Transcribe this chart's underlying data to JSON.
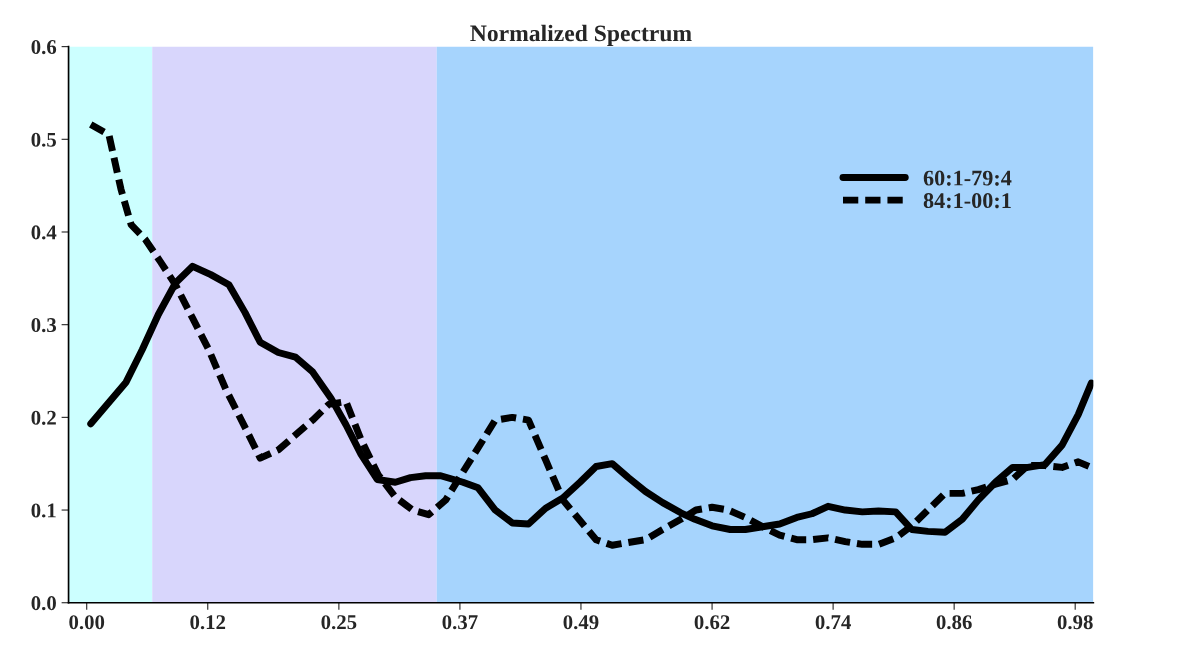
{
  "chart_data": {
    "type": "line",
    "title": "Normalized Spectrum",
    "xlim": [
      -0.018,
      0.998
    ],
    "ylim": [
      0,
      0.6
    ],
    "xticks": [
      {
        "value": 0,
        "label": "0.00"
      },
      {
        "value": 0.12,
        "label": "0.12"
      },
      {
        "value": 0.25,
        "label": "0.25"
      },
      {
        "value": 0.37,
        "label": "0.37"
      },
      {
        "value": 0.49,
        "label": "0.49"
      },
      {
        "value": 0.62,
        "label": "0.62"
      },
      {
        "value": 0.74,
        "label": "0.74"
      },
      {
        "value": 0.86,
        "label": "0.86"
      },
      {
        "value": 0.98,
        "label": "0.98"
      }
    ],
    "yticks": [
      {
        "value": 0,
        "label": "0.0"
      },
      0.1,
      0.2,
      0.3,
      0.4,
      0.5,
      0.6
    ],
    "grid": false,
    "legend": "right",
    "bands": [
      {
        "axis": "x",
        "from": -0.018,
        "to": 0.065,
        "color": "#ccffff"
      },
      {
        "axis": "x",
        "from": 0.065,
        "to": 0.347,
        "color": "#d8d6fc"
      },
      {
        "axis": "x",
        "from": 0.347,
        "to": 0.998,
        "color": "#a6d4fd"
      }
    ],
    "series": [
      {
        "name": "60:1-79:4",
        "color": "#000000",
        "line_style": "solid",
        "x": [
          0.004,
          0.039,
          0.055,
          0.071,
          0.088,
          0.105,
          0.123,
          0.141,
          0.157,
          0.172,
          0.19,
          0.207,
          0.224,
          0.242,
          0.257,
          0.272,
          0.288,
          0.306,
          0.321,
          0.336,
          0.351,
          0.373,
          0.388,
          0.405,
          0.422,
          0.438,
          0.455,
          0.472,
          0.489,
          0.505,
          0.521,
          0.537,
          0.554,
          0.571,
          0.589,
          0.603,
          0.62,
          0.638,
          0.653,
          0.67,
          0.687,
          0.704,
          0.719,
          0.735,
          0.752,
          0.769,
          0.785,
          0.802,
          0.818,
          0.834,
          0.851,
          0.868,
          0.884,
          0.901,
          0.918,
          0.933,
          0.95,
          0.967,
          0.983,
          0.996
        ],
        "values": [
          0.193,
          0.238,
          0.273,
          0.311,
          0.345,
          0.363,
          0.354,
          0.343,
          0.313,
          0.281,
          0.27,
          0.265,
          0.249,
          0.221,
          0.192,
          0.16,
          0.133,
          0.13,
          0.135,
          0.137,
          0.137,
          0.13,
          0.124,
          0.1,
          0.086,
          0.085,
          0.102,
          0.113,
          0.13,
          0.147,
          0.15,
          0.135,
          0.12,
          0.108,
          0.097,
          0.09,
          0.083,
          0.079,
          0.079,
          0.082,
          0.085,
          0.092,
          0.096,
          0.104,
          0.1,
          0.098,
          0.099,
          0.098,
          0.079,
          0.077,
          0.076,
          0.09,
          0.111,
          0.13,
          0.146,
          0.146,
          0.149,
          0.17,
          0.203,
          0.237
        ]
      },
      {
        "name": "84:1-00:1",
        "color": "#000000",
        "line_style": "dashed",
        "x": [
          0.004,
          0.022,
          0.034,
          0.044,
          0.058,
          0.073,
          0.088,
          0.105,
          0.121,
          0.138,
          0.158,
          0.172,
          0.19,
          0.207,
          0.224,
          0.24,
          0.257,
          0.272,
          0.289,
          0.306,
          0.323,
          0.339,
          0.356,
          0.373,
          0.388,
          0.405,
          0.422,
          0.438,
          0.455,
          0.472,
          0.488,
          0.505,
          0.521,
          0.537,
          0.554,
          0.571,
          0.589,
          0.604,
          0.62,
          0.636,
          0.653,
          0.67,
          0.687,
          0.704,
          0.719,
          0.735,
          0.752,
          0.769,
          0.785,
          0.802,
          0.818,
          0.834,
          0.851,
          0.868,
          0.884,
          0.901,
          0.918,
          0.933,
          0.95,
          0.967,
          0.983,
          0.996
        ],
        "values": [
          0.516,
          0.505,
          0.446,
          0.408,
          0.392,
          0.368,
          0.343,
          0.307,
          0.273,
          0.23,
          0.187,
          0.156,
          0.165,
          0.181,
          0.197,
          0.214,
          0.217,
          0.176,
          0.138,
          0.114,
          0.1,
          0.095,
          0.111,
          0.141,
          0.167,
          0.197,
          0.2,
          0.197,
          0.154,
          0.111,
          0.09,
          0.068,
          0.062,
          0.065,
          0.068,
          0.079,
          0.09,
          0.1,
          0.103,
          0.1,
          0.092,
          0.082,
          0.073,
          0.068,
          0.068,
          0.07,
          0.066,
          0.063,
          0.063,
          0.07,
          0.083,
          0.1,
          0.118,
          0.118,
          0.122,
          0.128,
          0.133,
          0.148,
          0.148,
          0.146,
          0.152,
          0.146
        ]
      }
    ]
  }
}
